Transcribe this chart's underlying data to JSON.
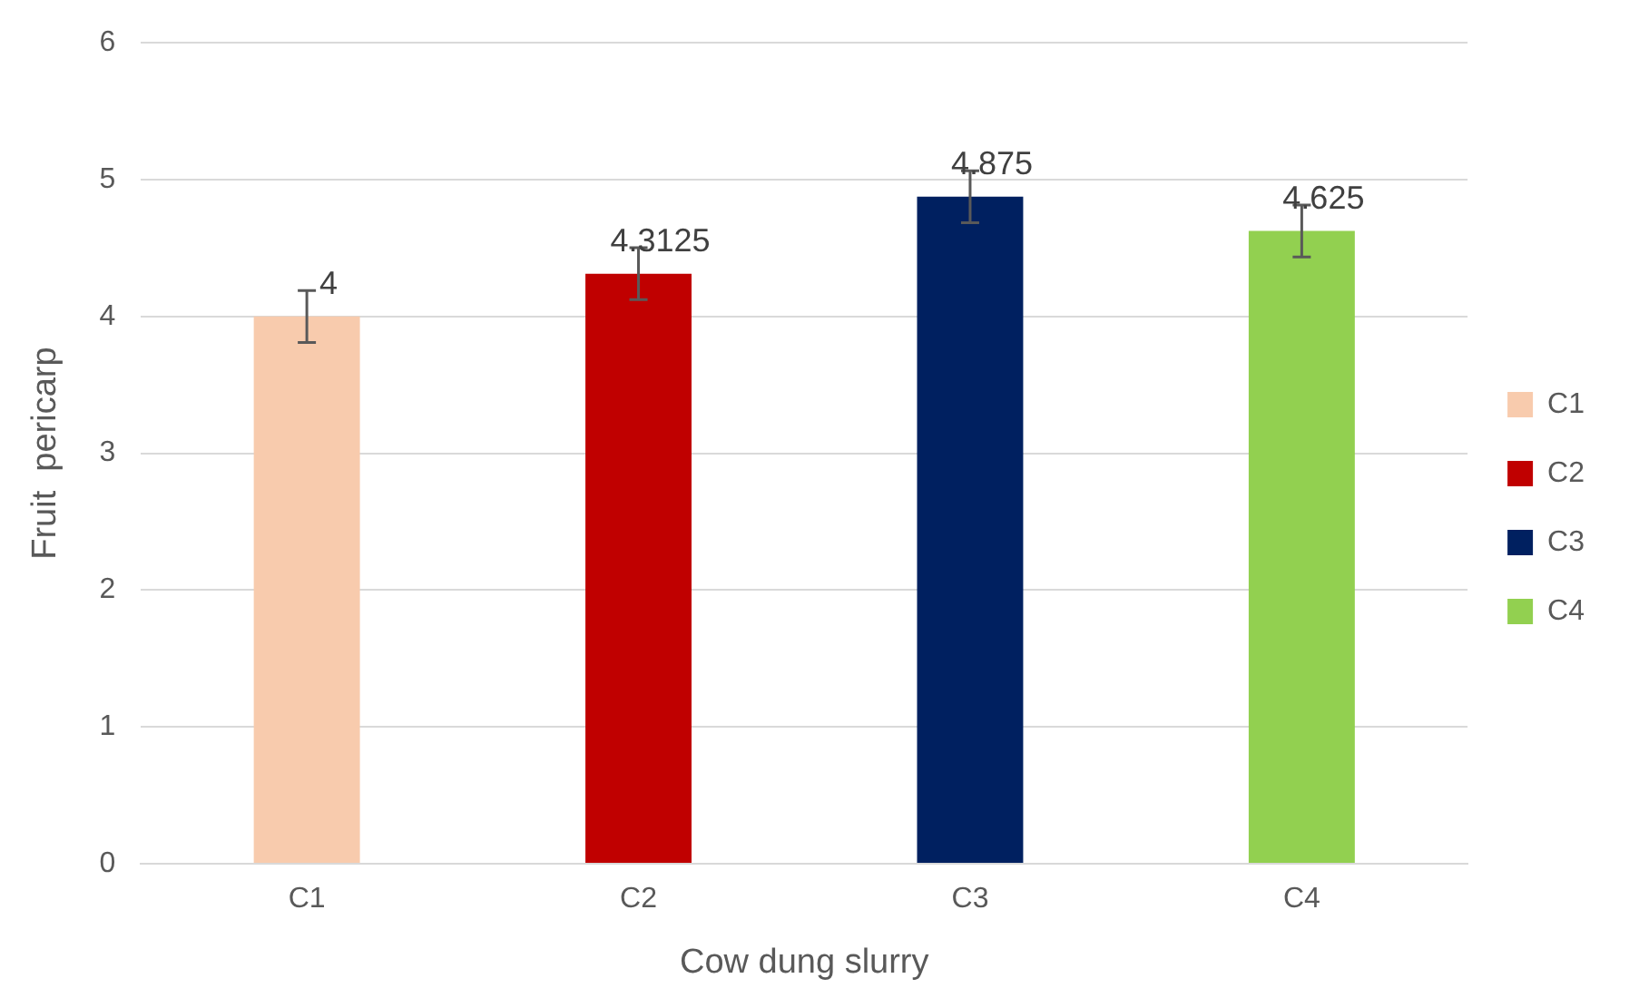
{
  "chart_data": {
    "type": "bar",
    "xlabel": "Cow dung slurry",
    "ylabel": "Fruit  pericarp",
    "categories": [
      "C1",
      "C2",
      "C3",
      "C4"
    ],
    "series": [
      {
        "name": "C1",
        "color": "#f8cbad",
        "values": [
          4,
          null,
          null,
          null
        ],
        "errors": [
          0.19,
          null,
          null,
          null
        ]
      },
      {
        "name": "C2",
        "color": "#c00000",
        "values": [
          null,
          4.3125,
          null,
          null
        ],
        "errors": [
          null,
          0.19,
          null,
          null
        ]
      },
      {
        "name": "C3",
        "color": "#002060",
        "values": [
          null,
          null,
          4.875,
          null
        ],
        "errors": [
          null,
          null,
          0.19,
          null
        ]
      },
      {
        "name": "C4",
        "color": "#92d050",
        "values": [
          null,
          null,
          null,
          4.625
        ],
        "errors": [
          null,
          null,
          null,
          0.19
        ]
      }
    ],
    "ylim": [
      0,
      6
    ],
    "yticks": [
      0,
      1,
      2,
      3,
      4,
      5,
      6
    ],
    "grid": "y",
    "legend": "right",
    "data_labels": true
  }
}
